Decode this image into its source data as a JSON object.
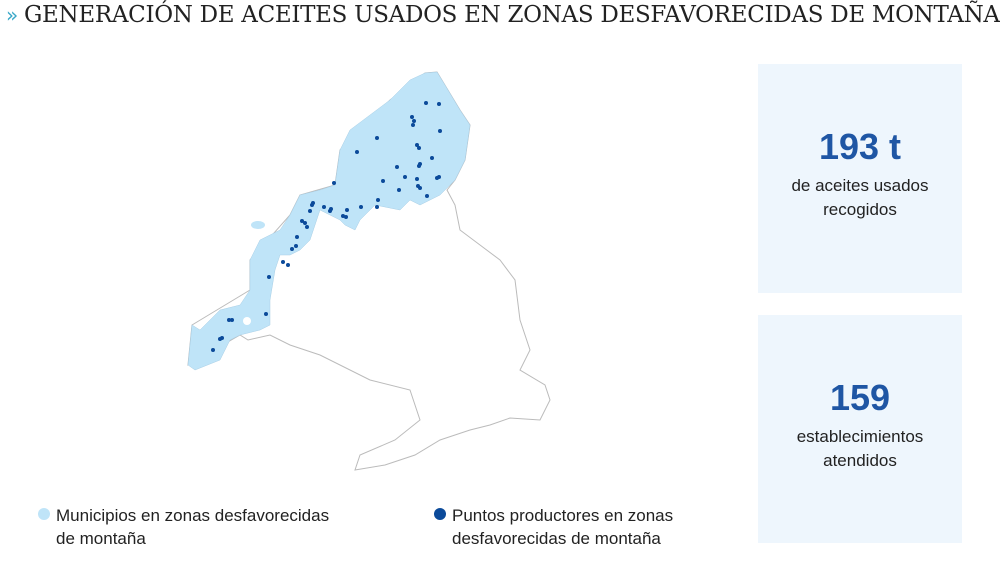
{
  "title": "GENERACIÓN DE ACEITES USADOS EN ZONAS DESFAVORECIDAS DE MONTAÑA",
  "title_icon": "double-chevron-right-icon",
  "colors": {
    "zone": "#bfe4f8",
    "points": "#0b4a9a",
    "accent": "#3aa8c8",
    "number": "#1f56a4",
    "panel": "#eef6fd",
    "outline": "#bbbbbb"
  },
  "stats": [
    {
      "value": "193 t",
      "label_line1": "de aceites usados",
      "label_line2": "recogidos"
    },
    {
      "value": "159",
      "label_line1": "establecimientos",
      "label_line2": "atendidos"
    }
  ],
  "legend": [
    {
      "line1": "Municipios en zonas desfavorecidas",
      "line2": "de montaña",
      "color": "#bfe4f8"
    },
    {
      "line1": "Puntos productores en zonas",
      "line2": "desfavorecidas de montaña",
      "color": "#0b4a9a"
    }
  ]
}
